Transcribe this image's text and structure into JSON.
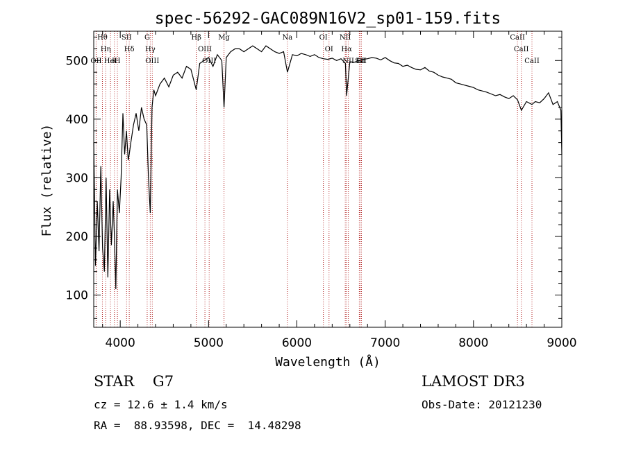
{
  "chart_data": {
    "type": "line",
    "title": "spec-56292-GAC089N16V2_sp01-159.fits",
    "xlabel": "Wavelength (Å)",
    "ylabel": "Flux (relative)",
    "xlim": [
      3700,
      9000
    ],
    "ylim": [
      45,
      550
    ],
    "xticks": [
      4000,
      5000,
      6000,
      7000,
      8000,
      9000
    ],
    "yticks": [
      100,
      200,
      300,
      400,
      500
    ],
    "grid": false,
    "series": [
      {
        "name": "spectrum",
        "x": [
          3700,
          3720,
          3740,
          3760,
          3780,
          3800,
          3820,
          3840,
          3860,
          3880,
          3900,
          3920,
          3934,
          3950,
          3968,
          3990,
          4010,
          4030,
          4050,
          4070,
          4090,
          4102,
          4120,
          4150,
          4180,
          4210,
          4240,
          4270,
          4300,
          4320,
          4340,
          4360,
          4380,
          4400,
          4450,
          4500,
          4550,
          4600,
          4650,
          4700,
          4750,
          4800,
          4861,
          4900,
          4950,
          5000,
          5050,
          5100,
          5150,
          5175,
          5200,
          5250,
          5300,
          5350,
          5400,
          5450,
          5500,
          5550,
          5600,
          5650,
          5700,
          5750,
          5800,
          5850,
          5893,
          5950,
          6000,
          6050,
          6100,
          6150,
          6200,
          6250,
          6300,
          6350,
          6400,
          6450,
          6500,
          6550,
          6563,
          6600,
          6650,
          6700,
          6750,
          6800,
          6850,
          6900,
          6950,
          7000,
          7050,
          7100,
          7150,
          7200,
          7250,
          7300,
          7350,
          7400,
          7450,
          7500,
          7550,
          7600,
          7650,
          7700,
          7750,
          7800,
          7850,
          7900,
          7950,
          8000,
          8050,
          8100,
          8150,
          8200,
          8250,
          8300,
          8350,
          8400,
          8450,
          8498,
          8542,
          8600,
          8662,
          8700,
          8750,
          8800,
          8850,
          8900,
          8950,
          8990,
          9000
        ],
        "y": [
          360,
          150,
          260,
          175,
          320,
          180,
          140,
          300,
          130,
          280,
          185,
          260,
          200,
          110,
          280,
          240,
          300,
          410,
          340,
          380,
          330,
          340,
          360,
          390,
          410,
          380,
          420,
          400,
          390,
          300,
          240,
          420,
          450,
          440,
          460,
          470,
          455,
          475,
          480,
          470,
          490,
          485,
          450,
          495,
          500,
          505,
          490,
          510,
          500,
          420,
          505,
          515,
          520,
          520,
          515,
          520,
          525,
          520,
          515,
          525,
          520,
          515,
          512,
          515,
          480,
          510,
          508,
          512,
          510,
          507,
          510,
          505,
          503,
          502,
          504,
          500,
          503,
          495,
          440,
          498,
          497,
          500,
          502,
          503,
          505,
          504,
          501,
          505,
          500,
          496,
          495,
          490,
          492,
          488,
          485,
          484,
          488,
          482,
          480,
          475,
          472,
          470,
          468,
          462,
          460,
          458,
          456,
          454,
          450,
          448,
          446,
          443,
          440,
          442,
          438,
          435,
          440,
          433,
          415,
          430,
          425,
          430,
          428,
          435,
          445,
          425,
          430,
          415,
          340
        ]
      }
    ],
    "lines": [
      {
        "label": "Hθ",
        "x": 3798
      },
      {
        "label": "Hη",
        "x": 3835
      },
      {
        "label": "OII",
        "x": 3727
      },
      {
        "label": "HeI",
        "x": 3889
      },
      {
        "label": "K",
        "x": 3934
      },
      {
        "label": "H",
        "x": 3968
      },
      {
        "label": "SII",
        "x": 4072
      },
      {
        "label": "Hδ",
        "x": 4102
      },
      {
        "label": "G",
        "x": 4305
      },
      {
        "label": "Hγ",
        "x": 4340
      },
      {
        "label": "OIII",
        "x": 4363
      },
      {
        "label": "Hβ",
        "x": 4861
      },
      {
        "label": "OIII",
        "x": 4959
      },
      {
        "label": "OIII",
        "x": 5007
      },
      {
        "label": "Mg",
        "x": 5175
      },
      {
        "label": "Na",
        "x": 5893
      },
      {
        "label": "OI",
        "x": 6300
      },
      {
        "label": "OI",
        "x": 6364
      },
      {
        "label": "NII",
        "x": 6548
      },
      {
        "label": "Hα",
        "x": 6563
      },
      {
        "label": "NII",
        "x": 6583
      },
      {
        "label": "Li",
        "x": 6707
      },
      {
        "label": "SII",
        "x": 6717
      },
      {
        "label": "SII",
        "x": 6731
      },
      {
        "label": "CaII",
        "x": 8498
      },
      {
        "label": "CaII",
        "x": 8542
      },
      {
        "label": "CaII",
        "x": 8662
      }
    ]
  },
  "info": {
    "class_line": "STAR    G7",
    "survey": "LAMOST DR3",
    "cz": "cz = 12.6 ± 1.4 km/s",
    "obs_date": "Obs-Date: 20121230",
    "coords": "RA =  88.93598, DEC =  14.48298"
  },
  "colors": {
    "line": "#000000",
    "marker": "#b22222"
  }
}
